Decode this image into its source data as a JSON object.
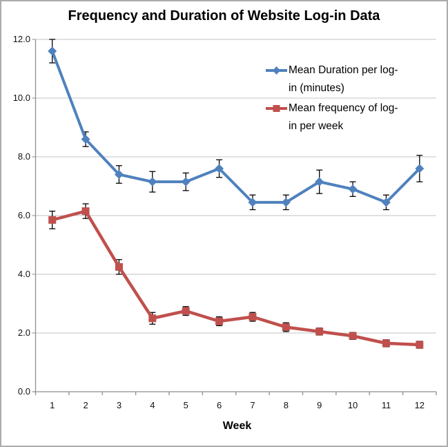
{
  "window": {
    "background": "#FFFFFF",
    "border_color": "#ABABAB"
  },
  "chart_data": {
    "type": "line",
    "title": "Frequency and Duration of Website Log-in Data",
    "xlabel": "Week",
    "ylabel": "",
    "categories": [
      "1",
      "2",
      "3",
      "4",
      "5",
      "6",
      "7",
      "8",
      "9",
      "10",
      "11",
      "12"
    ],
    "ylim": [
      0.0,
      12.0
    ],
    "ytick_step": 2.0,
    "ytick_labels": [
      "0.0",
      "2.0",
      "4.0",
      "6.0",
      "8.0",
      "10.0",
      "12.0"
    ],
    "grid": "horizontal-only",
    "legend_position": "inside-top-right",
    "error_bars": true,
    "colors": {
      "gridline": "#C3C3C3",
      "axis": "#8E8E8E",
      "error_bar": "#000000"
    },
    "series": [
      {
        "name": "Mean Duration per log-in (minutes)",
        "name_lines": [
          "Mean Duration per log-",
          "in (minutes)"
        ],
        "color": "#4F81BD",
        "marker": "diamond",
        "values": [
          11.6,
          8.6,
          7.4,
          7.15,
          7.15,
          7.6,
          6.45,
          6.45,
          7.15,
          6.9,
          6.45,
          7.6
        ],
        "errors": [
          0.4,
          0.25,
          0.3,
          0.35,
          0.3,
          0.3,
          0.25,
          0.25,
          0.4,
          0.25,
          0.25,
          0.45
        ]
      },
      {
        "name": "Mean frequency of log-in per week",
        "name_lines": [
          "Mean frequency of log-",
          "in per week"
        ],
        "color": "#C0504D",
        "marker": "square",
        "values": [
          5.85,
          6.15,
          4.25,
          2.5,
          2.75,
          2.4,
          2.55,
          2.2,
          2.05,
          1.9,
          1.65,
          1.6
        ],
        "errors": [
          0.3,
          0.25,
          0.25,
          0.2,
          0.15,
          0.15,
          0.15,
          0.15,
          0.12,
          0.12,
          0.12,
          0.12
        ]
      }
    ]
  }
}
